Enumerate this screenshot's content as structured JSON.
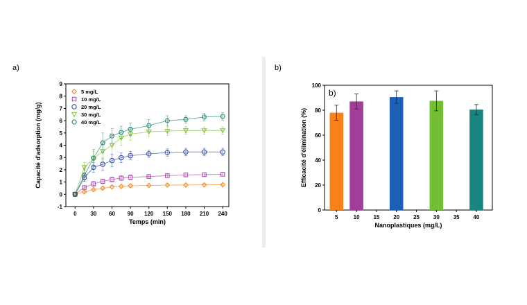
{
  "panel_labels": {
    "left": "a)",
    "right": "b)"
  },
  "chart_data": [
    {
      "type": "scatter",
      "title": "",
      "xlabel": "Temps (min)",
      "ylabel": "Capacité d'adsorption (mg/g)",
      "xlim": [
        -15,
        250
      ],
      "ylim": [
        -1,
        9
      ],
      "x_ticks": [
        0,
        30,
        60,
        90,
        120,
        150,
        180,
        210,
        240
      ],
      "y_ticks": [
        -1,
        0,
        1,
        2,
        3,
        4,
        5,
        6,
        7,
        8,
        9
      ],
      "x": [
        0,
        15,
        30,
        45,
        60,
        75,
        90,
        120,
        150,
        180,
        210,
        240
      ],
      "legend_position": "top-left",
      "series": [
        {
          "name": "5 mg/L",
          "color": "#f28e2b",
          "marker": "diamond",
          "values": [
            0,
            0.2,
            0.38,
            0.5,
            0.6,
            0.65,
            0.7,
            0.72,
            0.75,
            0.76,
            0.77,
            0.78
          ],
          "errors": [
            0,
            0.1,
            0.1,
            0.12,
            0.12,
            0.12,
            0.12,
            0.1,
            0.1,
            0.1,
            0.1,
            0.1
          ]
        },
        {
          "name": "10 mg/L",
          "color": "#b04fb0",
          "marker": "square",
          "values": [
            0,
            0.55,
            0.85,
            1.05,
            1.2,
            1.32,
            1.38,
            1.45,
            1.52,
            1.58,
            1.6,
            1.63
          ],
          "errors": [
            0,
            0.15,
            0.2,
            0.2,
            0.2,
            0.2,
            0.2,
            0.15,
            0.15,
            0.15,
            0.15,
            0.15
          ]
        },
        {
          "name": "20 mg/L",
          "color": "#3a4fb0",
          "marker": "circle",
          "values": [
            0,
            1.35,
            2.2,
            2.45,
            2.75,
            2.98,
            3.15,
            3.3,
            3.4,
            3.45,
            3.45,
            3.45
          ],
          "errors": [
            0,
            0.3,
            0.4,
            0.5,
            0.5,
            0.4,
            0.35,
            0.3,
            0.3,
            0.3,
            0.3,
            0.3
          ]
        },
        {
          "name": "30 mg/L",
          "color": "#8cc63f",
          "marker": "triangle-down",
          "values": [
            0,
            2.2,
            2.9,
            3.5,
            4.0,
            4.6,
            4.9,
            5.1,
            5.15,
            5.2,
            5.2,
            5.2
          ],
          "errors": [
            0,
            0.4,
            0.6,
            0.7,
            0.8,
            0.6,
            0.5,
            0.4,
            0.35,
            0.3,
            0.3,
            0.3
          ]
        },
        {
          "name": "40 mg/L",
          "color": "#2e8b7a",
          "marker": "hexagon",
          "values": [
            0,
            1.55,
            2.95,
            4.2,
            4.75,
            5.05,
            5.3,
            5.6,
            6.0,
            6.1,
            6.3,
            6.35
          ],
          "errors": [
            0,
            0.5,
            0.7,
            0.8,
            0.6,
            0.5,
            0.5,
            0.5,
            0.4,
            0.3,
            0.3,
            0.3
          ]
        }
      ]
    },
    {
      "type": "bar",
      "annotation": "b)",
      "xlabel": "Nanoplastiques (mg/L)",
      "ylabel": "Efficacité d'élimination (%)",
      "xlim": [
        2,
        44
      ],
      "ylim": [
        0,
        100
      ],
      "x_ticks": [
        5,
        10,
        15,
        20,
        25,
        30,
        35,
        40
      ],
      "y_ticks": [
        0,
        20,
        40,
        60,
        80,
        100
      ],
      "categories": [
        "5",
        "10",
        "20",
        "30",
        "40"
      ],
      "x": [
        5,
        10,
        20,
        30,
        40
      ],
      "values": [
        78,
        87,
        90.5,
        87.5,
        80.5
      ],
      "errors": [
        6,
        6,
        5,
        8,
        4
      ],
      "colors": [
        "#f7821b",
        "#a23e9a",
        "#1d5fb4",
        "#73be35",
        "#1a8580"
      ]
    }
  ]
}
